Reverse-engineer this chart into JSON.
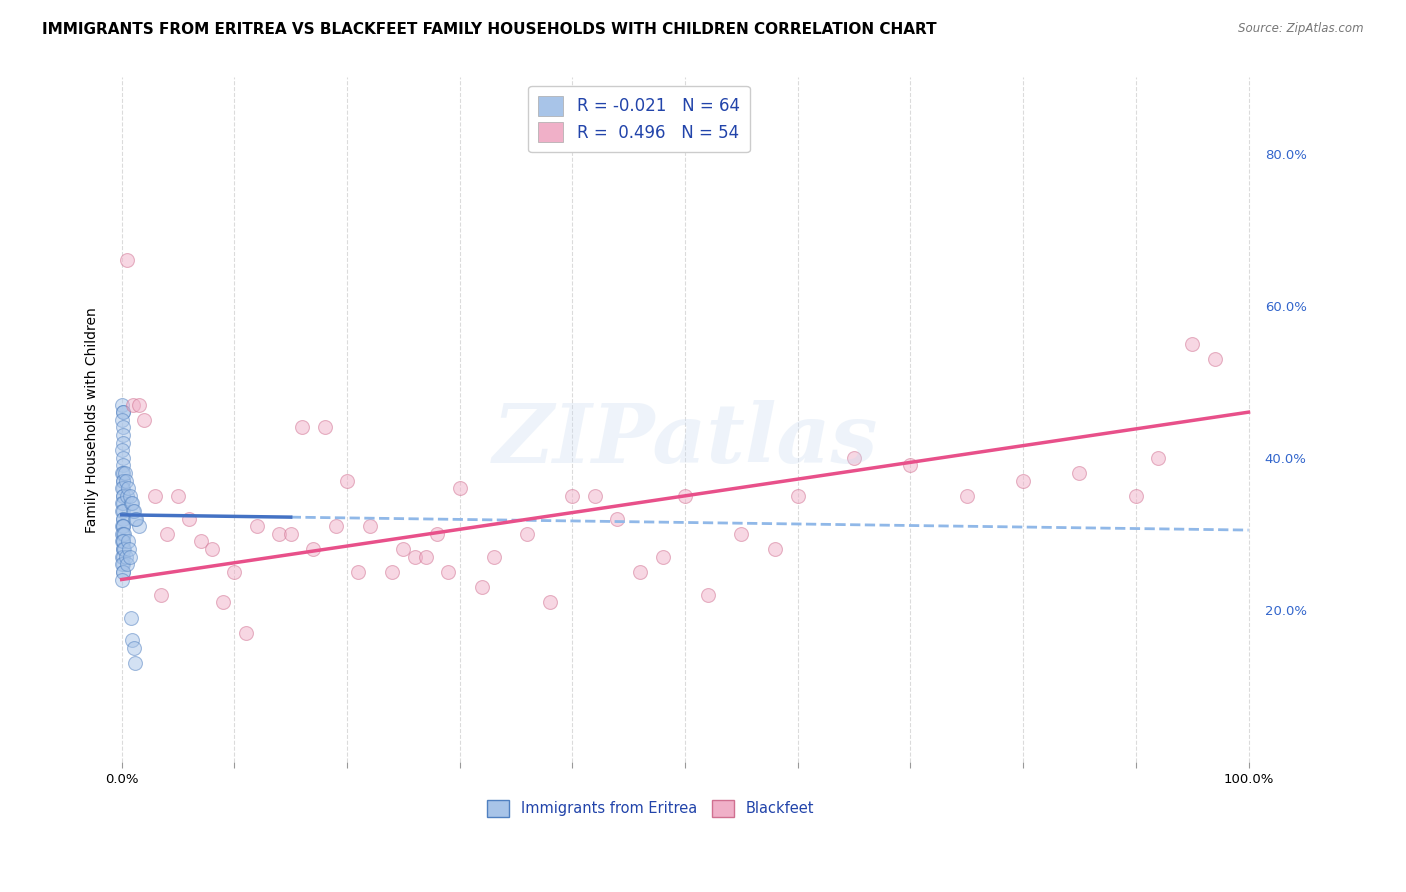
{
  "title": "IMMIGRANTS FROM ERITREA VS BLACKFEET FAMILY HOUSEHOLDS WITH CHILDREN CORRELATION CHART",
  "source": "Source: ZipAtlas.com",
  "ylabel_left": "Family Households with Children",
  "x_tick_values": [
    0,
    10,
    20,
    30,
    40,
    50,
    60,
    70,
    80,
    90,
    100
  ],
  "x_tick_labels_show": {
    "0": "0.0%",
    "100": "100.0%"
  },
  "y_tick_values_right": [
    20,
    40,
    60,
    80
  ],
  "y_tick_labels_right": [
    "20.0%",
    "40.0%",
    "60.0%",
    "80.0%"
  ],
  "xlim": [
    -1,
    101
  ],
  "ylim": [
    0,
    90
  ],
  "legend_r_blue": "R = -0.021",
  "legend_n_blue": "N = 64",
  "legend_r_pink": "R =  0.496",
  "legend_n_pink": "N = 54",
  "legend_bottom": [
    "Immigrants from Eritrea",
    "Blackfeet"
  ],
  "blue_scatter_x": [
    0.05,
    0.08,
    0.1,
    0.05,
    0.08,
    0.12,
    0.1,
    0.05,
    0.08,
    0.1,
    0.05,
    0.08,
    0.1,
    0.12,
    0.08,
    0.05,
    0.1,
    0.08,
    0.05,
    0.1,
    0.05,
    0.08,
    0.1,
    0.08,
    0.05,
    0.1,
    0.08,
    0.05,
    0.1,
    0.08,
    0.05,
    0.1,
    0.08,
    0.05,
    0.1,
    0.08,
    0.05,
    0.1,
    0.08,
    0.05,
    0.5,
    0.8,
    1.0,
    1.2,
    1.5,
    0.3,
    0.4,
    0.6,
    0.7,
    0.9,
    1.1,
    1.3,
    0.2,
    0.15,
    0.25,
    0.35,
    0.45,
    0.55,
    0.65,
    0.75,
    0.85,
    0.95,
    1.05,
    1.15
  ],
  "blue_scatter_y": [
    47,
    46,
    46,
    45,
    44,
    43,
    42,
    41,
    40,
    39,
    38,
    38,
    37,
    37,
    36,
    36,
    35,
    35,
    34,
    34,
    33,
    33,
    32,
    32,
    31,
    31,
    31,
    30,
    30,
    29,
    29,
    28,
    28,
    27,
    27,
    26,
    26,
    25,
    25,
    24,
    35,
    34,
    33,
    32,
    31,
    38,
    37,
    36,
    35,
    34,
    33,
    32,
    30,
    29,
    28,
    27,
    26,
    29,
    28,
    27,
    19,
    16,
    15,
    13
  ],
  "pink_scatter_x": [
    0.5,
    1.0,
    1.5,
    2.0,
    3.0,
    4.0,
    5.0,
    7.0,
    8.0,
    10.0,
    12.0,
    14.0,
    16.0,
    18.0,
    20.0,
    22.0,
    24.0,
    26.0,
    28.0,
    30.0,
    33.0,
    36.0,
    40.0,
    44.0,
    48.0,
    50.0,
    55.0,
    3.5,
    6.0,
    9.0,
    11.0,
    15.0,
    17.0,
    19.0,
    21.0,
    25.0,
    27.0,
    29.0,
    32.0,
    38.0,
    42.0,
    46.0,
    60.0,
    65.0,
    70.0,
    75.0,
    80.0,
    85.0,
    90.0,
    92.0,
    95.0,
    97.0,
    52.0,
    58.0
  ],
  "pink_scatter_y": [
    66,
    47,
    47,
    45,
    35,
    30,
    35,
    29,
    28,
    25,
    31,
    30,
    44,
    44,
    37,
    31,
    25,
    27,
    30,
    36,
    27,
    30,
    35,
    32,
    27,
    35,
    30,
    22,
    32,
    21,
    17,
    30,
    28,
    31,
    25,
    28,
    27,
    25,
    23,
    21,
    35,
    25,
    35,
    40,
    39,
    35,
    37,
    38,
    35,
    40,
    55,
    53,
    22,
    28
  ],
  "blue_line_intercept": 32.5,
  "blue_line_end_y": 30.5,
  "pink_line_intercept": 24.0,
  "pink_line_end_y": 46.0,
  "blue_solid_end_x": 15,
  "blue_dashed_start_x": 15,
  "watermark_text": "ZIPatlas",
  "watermark_color": "#c8daf0",
  "watermark_alpha": 0.3,
  "bg_color": "#ffffff",
  "grid_color": "#d8d8d8",
  "title_fontsize": 11,
  "axis_fontsize": 10,
  "tick_fontsize": 9.5,
  "dot_size": 100,
  "dot_alpha": 0.5,
  "blue_dot_color": "#a8c4e8",
  "blue_dot_edge": "#5080c0",
  "pink_dot_color": "#f0b0c8",
  "pink_dot_edge": "#d07090",
  "blue_line_color": "#4472c4",
  "blue_dash_color": "#90b8e8",
  "pink_line_color": "#e8508a"
}
